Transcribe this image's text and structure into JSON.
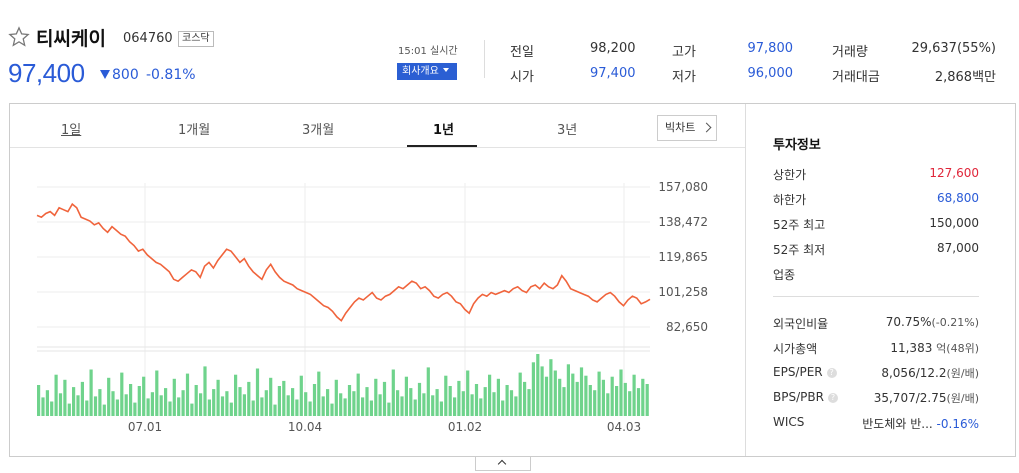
{
  "stock": {
    "name": "티씨케이",
    "code": "064760",
    "market": "코스닥",
    "price": "97,400",
    "change": "800",
    "change_pct": "-0.81%",
    "realtime": "15:01 실시간",
    "company_btn": "회사개요"
  },
  "quote": {
    "prev_label": "전일",
    "prev": "98,200",
    "high_label": "고가",
    "high": "97,800",
    "vol_label": "거래량",
    "vol": "29,637(55%)",
    "open_label": "시가",
    "open": "97,400",
    "low_label": "저가",
    "low": "96,000",
    "amt_label": "거래대금",
    "amt": "2,868백만"
  },
  "tabs": [
    "1일",
    "1개월",
    "3개월",
    "1년",
    "3년"
  ],
  "active_tab": "1년",
  "big_chart": "빅차트",
  "info": {
    "title": "투자정보",
    "rows1": [
      {
        "label": "상한가",
        "value": "127,600",
        "color": "red"
      },
      {
        "label": "하한가",
        "value": "68,800",
        "color": "blue"
      },
      {
        "label": "52주 최고",
        "value": "150,000",
        "color": "normal"
      },
      {
        "label": "52주 최저",
        "value": "87,000",
        "color": "normal"
      },
      {
        "label": "업종",
        "value": "",
        "color": "normal"
      }
    ],
    "foreign_label": "외국인비율",
    "foreign_val": "70.75%",
    "foreign_chg": "(-0.21%)",
    "mcap_label": "시가총액",
    "mcap_val": "11,383",
    "mcap_unit": "억(48위)",
    "eps_label": "EPS/PER",
    "eps_val": "8,056/12.2",
    "eps_unit": "(원/배)",
    "bps_label": "BPS/PBR",
    "bps_val": "35,707/2.75",
    "bps_unit": "(원/배)",
    "wics_label": "WICS",
    "wics_val": "반도체와 반...",
    "wics_chg": "-0.16%"
  },
  "chart_data": {
    "type": "line",
    "yticks": [
      "157,080",
      "138,472",
      "119,865",
      "101,258",
      "82,650"
    ],
    "ytick_values": [
      157080,
      138472,
      119865,
      101258,
      82650
    ],
    "xticks": [
      "07.01",
      "10.04",
      "01.02",
      "04.03"
    ],
    "ylim": [
      82650,
      157080
    ],
    "line_color": "#f0643c",
    "volume_color": "#6fd38c",
    "series": [
      {
        "values": [
          142000,
          141000,
          143000,
          144000,
          142000,
          146000,
          145000,
          144000,
          148000,
          146000,
          141000,
          140000,
          139000,
          137000,
          138000,
          135000,
          133000,
          136000,
          134000,
          132000,
          131000,
          128000,
          126000,
          123000,
          124000,
          121000,
          119000,
          117000,
          116000,
          114000,
          112000,
          108000,
          107000,
          109000,
          111000,
          113000,
          112000,
          109000,
          115000,
          117000,
          114000,
          118000,
          121000,
          124000,
          123000,
          120000,
          117000,
          119000,
          115000,
          112000,
          110000,
          108000,
          113000,
          116000,
          112000,
          109000,
          107000,
          106000,
          105000,
          103000,
          102000,
          101000,
          100000,
          98000,
          96000,
          94000,
          93000,
          91000,
          88000,
          86000,
          90000,
          93000,
          96000,
          98000,
          97000,
          99000,
          101000,
          98000,
          97000,
          99000,
          100000,
          102000,
          104000,
          103000,
          105000,
          107000,
          106000,
          103000,
          104000,
          102000,
          99000,
          98000,
          100000,
          101000,
          99000,
          96000,
          95000,
          92000,
          90000,
          95000,
          98000,
          100000,
          99000,
          101000,
          100000,
          101000,
          102000,
          101000,
          103000,
          104000,
          102000,
          101000,
          104000,
          105000,
          103000,
          106000,
          104000,
          103000,
          105000,
          110000,
          107000,
          103000,
          102000,
          101000,
          100000,
          99000,
          97000,
          96000,
          98000,
          100000,
          101000,
          99000,
          96000,
          94000,
          97000,
          99000,
          98000,
          95000,
          96000,
          97400
        ]
      }
    ],
    "volume": [
      30,
      18,
      25,
      14,
      40,
      22,
      35,
      12,
      28,
      20,
      33,
      15,
      45,
      19,
      26,
      11,
      37,
      24,
      16,
      42,
      21,
      31,
      13,
      29,
      38,
      17,
      23,
      44,
      20,
      27,
      14,
      36,
      18,
      25,
      41,
      12,
      30,
      22,
      48,
      16,
      26,
      35,
      19,
      24,
      13,
      40,
      28,
      21,
      33,
      15,
      46,
      18,
      25,
      37,
      11,
      29,
      34,
      20,
      27,
      16,
      39,
      23,
      14,
      31,
      43,
      19,
      26,
      12,
      35,
      22,
      17,
      30,
      24,
      41,
      18,
      28,
      15,
      36,
      21,
      33,
      13,
      45,
      25,
      19,
      38,
      27,
      16,
      32,
      22,
      47,
      20,
      26,
      14,
      39,
      29,
      18,
      34,
      24,
      44,
      21,
      31,
      17,
      28,
      40,
      23,
      36,
      15,
      30,
      25,
      19,
      42,
      33,
      26,
      52,
      60,
      48,
      38,
      55,
      44,
      36,
      28,
      50,
      41,
      33,
      47,
      39,
      30,
      25,
      43,
      35,
      22,
      38,
      29,
      45,
      32,
      24,
      40,
      27,
      36,
      31
    ]
  }
}
